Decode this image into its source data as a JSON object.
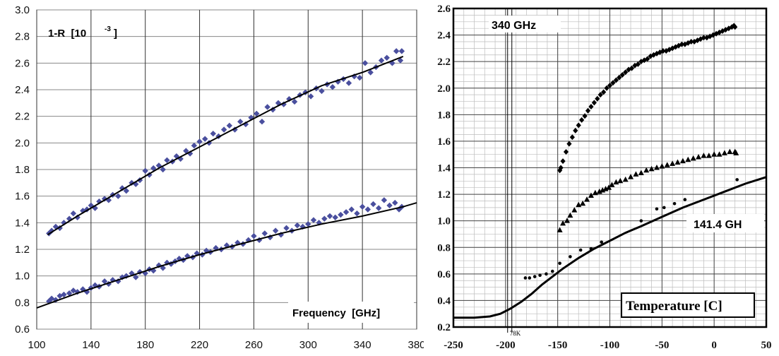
{
  "chart_data": [
    {
      "type": "scatter",
      "title": "1-R  [10",
      "title_sup": "-3",
      "title_end": "]",
      "xlabel": "Frequency  [GHz]",
      "ylabel": "",
      "xlim": [
        100,
        380
      ],
      "ylim": [
        0.6,
        3.0
      ],
      "x_ticks": [
        "100",
        "140",
        "180",
        "220",
        "260",
        "300",
        "340",
        "380"
      ],
      "y_ticks": [
        "0.6",
        "0.8",
        "1.0",
        "1.2",
        "1.4",
        "1.6",
        "1.8",
        "2.0",
        "2.2",
        "2.4",
        "2.6",
        "2.8",
        "3.0"
      ],
      "grid": true,
      "marker": "diamond",
      "marker_color": "#4a4f9e",
      "series": [
        {
          "x": [
            109,
            111,
            114,
            117,
            120,
            124,
            127,
            130,
            134,
            137,
            140,
            143,
            146,
            150,
            153,
            156,
            160,
            163,
            166,
            170,
            173,
            176,
            180,
            183,
            186,
            190,
            193,
            196,
            200,
            203,
            206,
            210,
            213,
            216,
            220,
            224,
            227,
            230,
            234,
            238,
            242,
            246,
            250,
            254,
            258,
            262,
            266,
            270,
            274,
            278,
            282,
            286,
            290,
            294,
            298,
            302,
            306,
            310,
            314,
            318,
            322,
            326,
            330,
            334,
            338,
            342,
            346,
            350,
            354,
            358,
            362,
            365,
            368,
            369
          ],
          "y": [
            1.32,
            1.34,
            1.37,
            1.36,
            1.4,
            1.43,
            1.47,
            1.44,
            1.49,
            1.5,
            1.53,
            1.51,
            1.56,
            1.58,
            1.57,
            1.61,
            1.6,
            1.66,
            1.64,
            1.7,
            1.69,
            1.72,
            1.79,
            1.76,
            1.81,
            1.83,
            1.8,
            1.87,
            1.86,
            1.9,
            1.88,
            1.94,
            1.92,
            1.98,
            2.01,
            2.03,
            2.0,
            2.07,
            2.05,
            2.1,
            2.13,
            2.1,
            2.16,
            2.14,
            2.19,
            2.22,
            2.16,
            2.27,
            2.25,
            2.3,
            2.29,
            2.33,
            2.31,
            2.36,
            2.38,
            2.35,
            2.41,
            2.39,
            2.44,
            2.42,
            2.46,
            2.48,
            2.45,
            2.5,
            2.49,
            2.6,
            2.53,
            2.57,
            2.62,
            2.64,
            2.6,
            2.69,
            2.62,
            2.69
          ]
        },
        {
          "x": [
            109,
            111,
            114,
            117,
            120,
            124,
            127,
            130,
            134,
            137,
            140,
            143,
            146,
            150,
            153,
            156,
            160,
            163,
            166,
            170,
            173,
            176,
            180,
            183,
            186,
            190,
            193,
            196,
            199,
            202,
            205,
            208,
            211,
            215,
            218,
            222,
            225,
            228,
            232,
            236,
            240,
            244,
            248,
            252,
            256,
            260,
            264,
            268,
            272,
            276,
            280,
            284,
            288,
            292,
            296,
            300,
            304,
            308,
            312,
            316,
            320,
            324,
            328,
            332,
            336,
            340,
            344,
            348,
            352,
            356,
            360,
            364,
            367,
            369
          ],
          "y": [
            0.81,
            0.83,
            0.82,
            0.85,
            0.86,
            0.87,
            0.89,
            0.88,
            0.9,
            0.88,
            0.91,
            0.93,
            0.92,
            0.96,
            0.94,
            0.97,
            0.96,
            0.99,
            1.0,
            1.02,
            0.99,
            1.03,
            1.02,
            1.05,
            1.04,
            1.08,
            1.06,
            1.1,
            1.09,
            1.11,
            1.13,
            1.12,
            1.15,
            1.14,
            1.17,
            1.16,
            1.19,
            1.18,
            1.21,
            1.2,
            1.23,
            1.22,
            1.25,
            1.24,
            1.27,
            1.3,
            1.27,
            1.32,
            1.29,
            1.34,
            1.31,
            1.36,
            1.34,
            1.38,
            1.37,
            1.39,
            1.42,
            1.4,
            1.43,
            1.45,
            1.44,
            1.46,
            1.48,
            1.5,
            1.47,
            1.52,
            1.5,
            1.54,
            1.51,
            1.57,
            1.53,
            1.55,
            1.5,
            1.52
          ]
        }
      ],
      "fits": [
        {
          "x": [
            108,
            130,
            160,
            190,
            220,
            250,
            280,
            310,
            340,
            370
          ],
          "y": [
            1.31,
            1.45,
            1.63,
            1.81,
            1.97,
            2.13,
            2.29,
            2.43,
            2.53,
            2.65
          ]
        },
        {
          "x": [
            100,
            130,
            160,
            190,
            220,
            250,
            280,
            310,
            340,
            370,
            380
          ],
          "y": [
            0.76,
            0.87,
            0.97,
            1.07,
            1.16,
            1.24,
            1.32,
            1.39,
            1.45,
            1.52,
            1.55
          ]
        }
      ]
    },
    {
      "type": "scatter",
      "xlabel": "Temperature [C]",
      "ylabel": "",
      "xlim": [
        -250,
        50
      ],
      "ylim": [
        0.2,
        2.6
      ],
      "x_ticks": [
        "-250",
        "-200",
        "-150",
        "-100",
        "-50",
        "0",
        "50"
      ],
      "y_ticks": [
        "0.2",
        "0.4",
        "0.6",
        "0.8",
        "1.0",
        "1.2",
        "1.4",
        "1.6",
        "1.8",
        "2.0",
        "2.2",
        "2.4",
        "2.6"
      ],
      "grid": true,
      "vline_label": "78K",
      "vline_x": -196,
      "annotations": [
        "340 GHz",
        "141.4 GH"
      ],
      "series": [
        {
          "marker": "diamond",
          "x": [
            -148,
            -147,
            -145,
            -142,
            -139,
            -136,
            -133,
            -130,
            -127,
            -124,
            -121,
            -118,
            -115,
            -112,
            -109,
            -106,
            -103,
            -100,
            -97,
            -94,
            -91,
            -88,
            -85,
            -82,
            -79,
            -76,
            -73,
            -70,
            -67,
            -64,
            -61,
            -58,
            -55,
            -52,
            -49,
            -46,
            -43,
            -40,
            -37,
            -34,
            -31,
            -28,
            -25,
            -22,
            -19,
            -16,
            -13,
            -10,
            -7,
            -4,
            -1,
            2,
            5,
            8,
            11,
            14,
            17,
            19,
            20
          ],
          "y": [
            1.38,
            1.4,
            1.45,
            1.52,
            1.58,
            1.63,
            1.68,
            1.72,
            1.76,
            1.79,
            1.83,
            1.86,
            1.89,
            1.92,
            1.95,
            1.97,
            2.0,
            2.02,
            2.04,
            2.06,
            2.08,
            2.1,
            2.12,
            2.14,
            2.15,
            2.17,
            2.18,
            2.2,
            2.21,
            2.22,
            2.24,
            2.25,
            2.26,
            2.27,
            2.28,
            2.28,
            2.29,
            2.3,
            2.31,
            2.32,
            2.33,
            2.33,
            2.34,
            2.35,
            2.35,
            2.36,
            2.37,
            2.38,
            2.38,
            2.39,
            2.4,
            2.41,
            2.42,
            2.43,
            2.44,
            2.45,
            2.46,
            2.47,
            2.46
          ]
        },
        {
          "marker": "triangle",
          "x": [
            -148,
            -145,
            -141,
            -138,
            -134,
            -130,
            -126,
            -122,
            -118,
            -114,
            -110,
            -107,
            -104,
            -101,
            -98,
            -94,
            -90,
            -85,
            -80,
            -75,
            -70,
            -65,
            -60,
            -55,
            -50,
            -45,
            -40,
            -35,
            -30,
            -25,
            -20,
            -15,
            -10,
            -5,
            0,
            5,
            10,
            15,
            20,
            21
          ],
          "y": [
            0.93,
            0.98,
            1.0,
            1.04,
            1.08,
            1.12,
            1.13,
            1.16,
            1.19,
            1.21,
            1.22,
            1.23,
            1.24,
            1.25,
            1.27,
            1.29,
            1.3,
            1.31,
            1.33,
            1.35,
            1.36,
            1.38,
            1.39,
            1.4,
            1.41,
            1.42,
            1.43,
            1.44,
            1.45,
            1.46,
            1.47,
            1.48,
            1.49,
            1.49,
            1.5,
            1.5,
            1.51,
            1.52,
            1.52,
            1.51
          ]
        },
        {
          "marker": "circle",
          "x": [
            -181,
            -177,
            -172,
            -167,
            -161,
            -155,
            -148,
            -138,
            -128,
            -118,
            -108,
            -70,
            -55,
            -48,
            -38,
            -28,
            22
          ],
          "y": [
            0.57,
            0.57,
            0.58,
            0.59,
            0.6,
            0.62,
            0.68,
            0.73,
            0.78,
            0.79,
            0.84,
            1.0,
            1.09,
            1.1,
            1.13,
            1.16,
            1.31
          ]
        }
      ],
      "fit": {
        "x": [
          -250,
          -230,
          -215,
          -205,
          -195,
          -185,
          -175,
          -165,
          -155,
          -145,
          -130,
          -115,
          -100,
          -85,
          -70,
          -50,
          -30,
          -10,
          10,
          30,
          50
        ],
        "y": [
          0.27,
          0.27,
          0.28,
          0.3,
          0.34,
          0.39,
          0.45,
          0.52,
          0.58,
          0.64,
          0.72,
          0.79,
          0.85,
          0.91,
          0.96,
          1.03,
          1.1,
          1.16,
          1.22,
          1.28,
          1.33
        ]
      }
    }
  ]
}
